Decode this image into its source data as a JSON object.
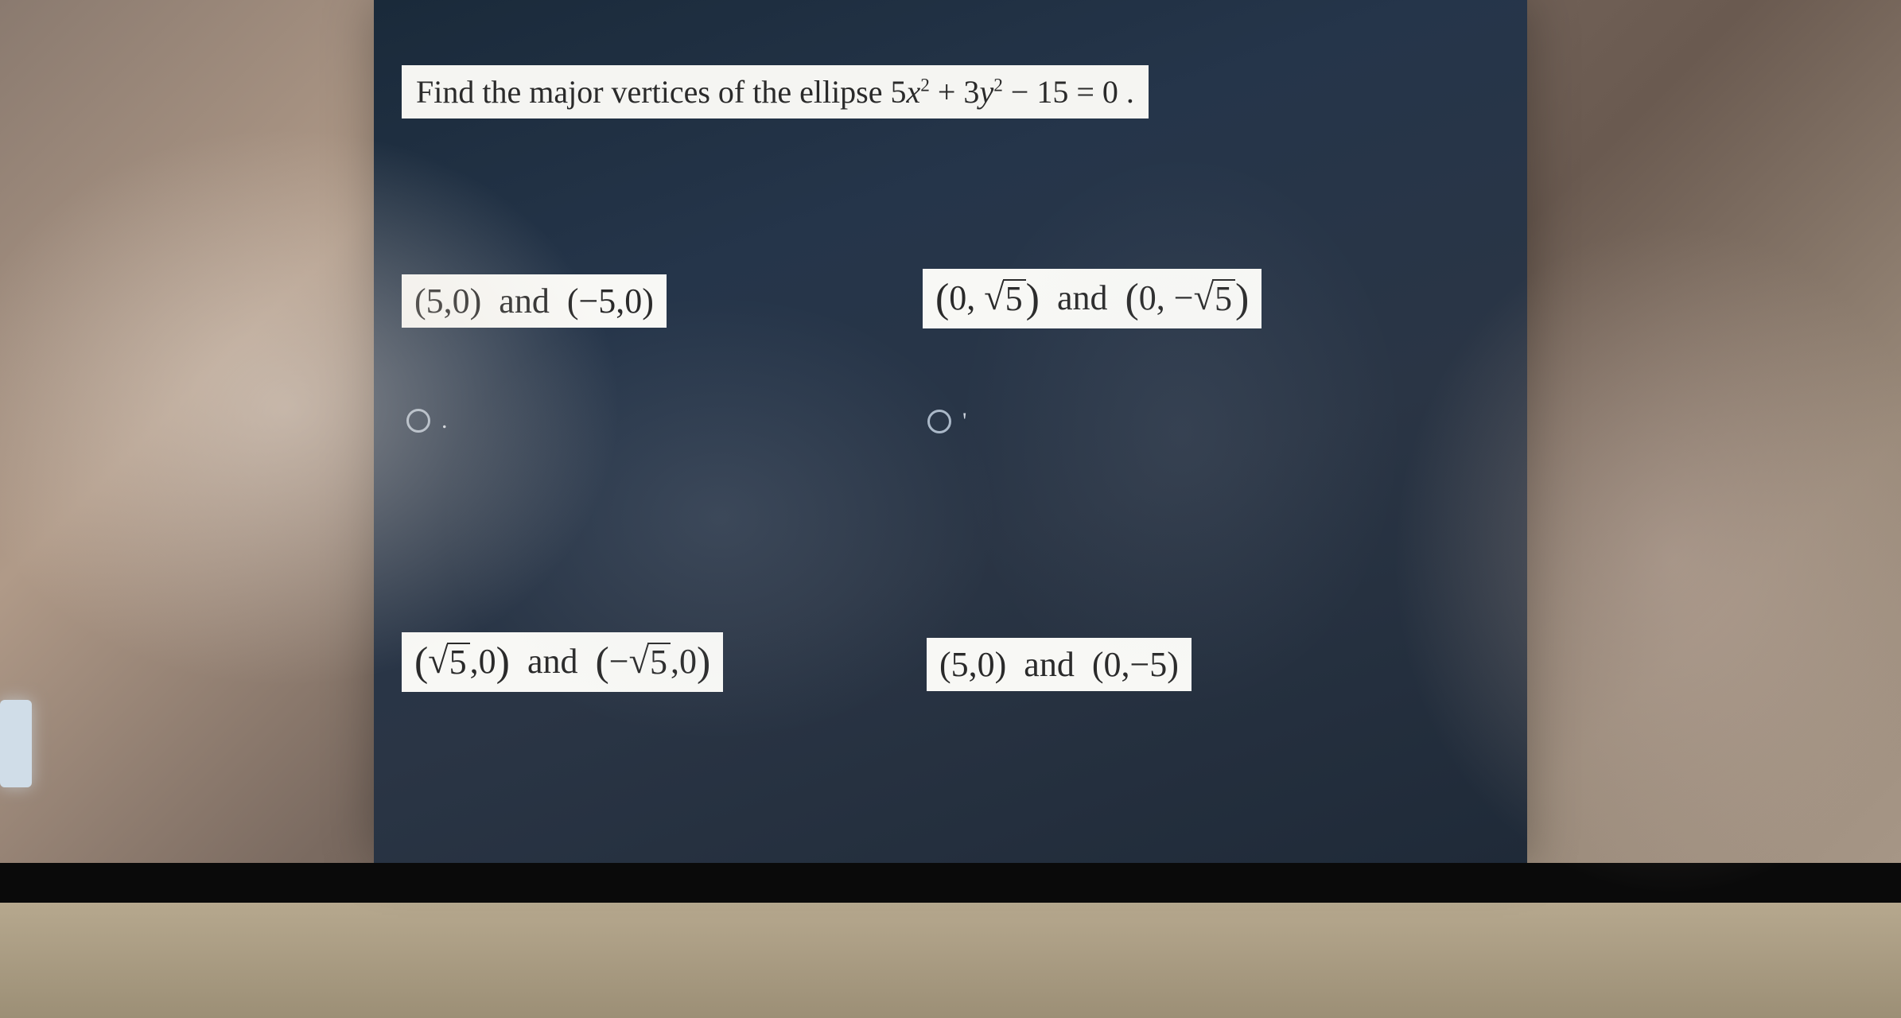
{
  "question": {
    "prefix": "Find the major vertices of the ellipse ",
    "equation_html": "5<span class=\"math\">x</span><sup>2</sup> + 3<span class=\"math\">y</span><sup>2</sup> − 15 = 0",
    "suffix": " ."
  },
  "options": {
    "a": {
      "html": "(5,0)&nbsp; and &nbsp;(−5,0)",
      "suffix": "."
    },
    "b": {
      "html": "<span class=\"big-paren\">(</span>0, <span class=\"sqrt\"><span class=\"radical\">√</span><span class=\"radicand\">5</span></span><span class=\"big-paren\">)</span>&nbsp; and &nbsp;<span class=\"big-paren\">(</span>0, −<span class=\"sqrt\"><span class=\"radical\">√</span><span class=\"radicand\">5</span></span><span class=\"big-paren\">)</span>",
      "suffix": "'"
    },
    "c": {
      "html": "<span class=\"big-paren\">(</span><span class=\"sqrt\"><span class=\"radical\">√</span><span class=\"radicand\">5</span></span>,0<span class=\"big-paren\">)</span>&nbsp; and &nbsp;<span class=\"big-paren\">(</span>−<span class=\"sqrt\"><span class=\"radical\">√</span><span class=\"radicand\">5</span></span>,0<span class=\"big-paren\">)</span>",
      "suffix": ""
    },
    "d": {
      "html": "(5,0)&nbsp; and &nbsp;(0,−5)",
      "suffix": ""
    }
  },
  "colors": {
    "panel_bg": "#22334a",
    "label_bg": "#f6f6f3",
    "label_text": "#2a2a2a",
    "radio_border": "#aab8c8"
  }
}
